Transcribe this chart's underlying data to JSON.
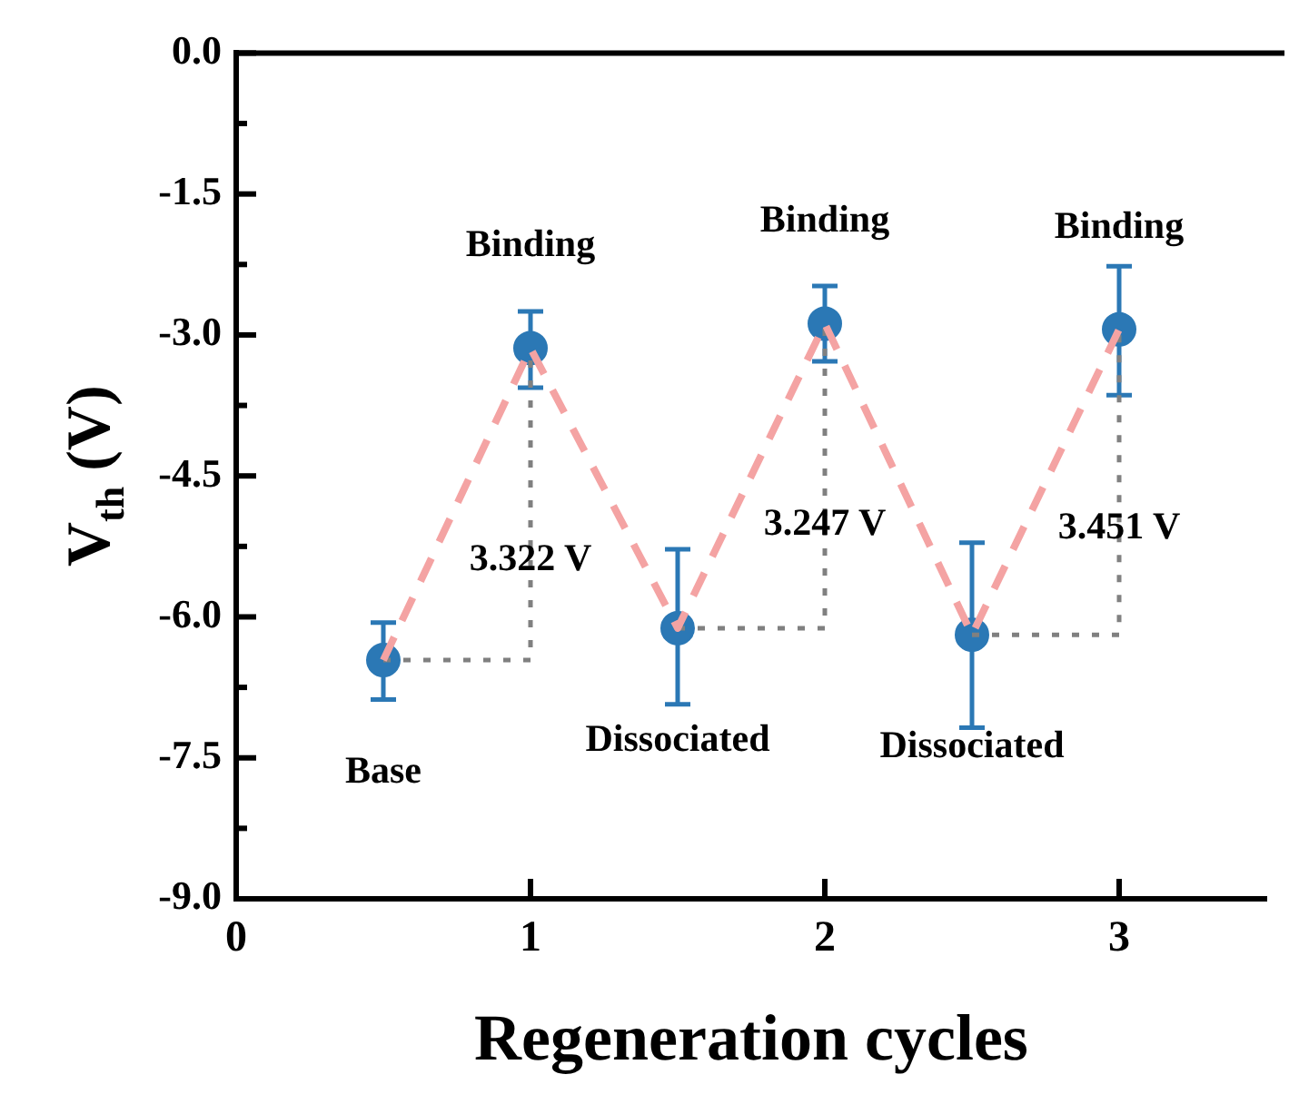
{
  "chart_data": {
    "type": "scatter",
    "xlabel": "Regeneration cycles",
    "ylabel": "V$_{th}$ (V)",
    "xlim": [
      0,
      3.5
    ],
    "xticks": [
      0,
      1,
      2,
      3
    ],
    "ylim": [
      -9,
      0
    ],
    "yticks": [
      {
        "value": -9,
        "label": "-9.0"
      },
      {
        "value": -8.25,
        "label": null
      },
      -7.5,
      {
        "value": -6.75,
        "label": null
      },
      {
        "value": -6,
        "label": "-6.0"
      },
      {
        "value": -5.25,
        "label": null
      },
      -4.5,
      {
        "value": -3.75,
        "label": null
      },
      {
        "value": -3,
        "label": "-3.0"
      },
      {
        "value": -2.25,
        "label": null
      },
      -1.5,
      {
        "value": -0.75,
        "label": null
      },
      {
        "value": 0,
        "label": "0.0"
      }
    ],
    "grid": false,
    "legend": false,
    "series": [
      {
        "type": "line",
        "color": "#f4a3a3",
        "line_style": "dashed",
        "marker": "none",
        "x": [
          0.5,
          1,
          1.5,
          2,
          2.5,
          3
        ],
        "values": [
          -6.46,
          -3.14,
          -6.12,
          -2.88,
          -6.19,
          -2.94
        ]
      },
      {
        "type": "line",
        "color": "#808080",
        "line_style": "dotted",
        "marker": "none",
        "x": [
          0.5,
          1,
          1
        ],
        "values": [
          -6.46,
          -6.46,
          -3.14
        ]
      },
      {
        "type": "line",
        "color": "#808080",
        "line_style": "dotted",
        "marker": "none",
        "x": [
          1.5,
          2,
          2
        ],
        "values": [
          -6.12,
          -6.12,
          -2.88
        ]
      },
      {
        "type": "line",
        "color": "#808080",
        "line_style": "dotted",
        "marker": "none",
        "x": [
          2.5,
          3,
          3
        ],
        "values": [
          -6.19,
          -6.19,
          -2.94
        ]
      },
      {
        "type": "scatter",
        "color": "#2b78b5",
        "marker": "circle",
        "x": [
          0.5,
          1,
          1.5,
          2,
          2.5,
          3
        ],
        "values": [
          -6.46,
          -3.14,
          -6.12,
          -2.88,
          -6.19,
          -2.94
        ],
        "errors": [
          [
            -6.88,
            -6.06
          ],
          [
            -3.56,
            -2.75
          ],
          [
            -6.93,
            -5.28
          ],
          [
            -3.28,
            -2.48
          ],
          [
            -7.18,
            -5.21
          ],
          [
            -3.64,
            -2.27
          ]
        ]
      }
    ],
    "annotations": [
      {
        "text": "Base",
        "x": 0.5,
        "y": -6.46
      },
      {
        "text": "Binding",
        "x": 1,
        "y": -3.14
      },
      {
        "text": "Dissociated",
        "x": 1.5,
        "y": -6.12
      },
      {
        "text": "Binding",
        "x": 2,
        "y": -2.88
      },
      {
        "text": "Dissociated",
        "x": 2.5,
        "y": -6.19
      },
      {
        "text": "Binding",
        "x": 3,
        "y": -2.94
      },
      {
        "text": "3.322 V",
        "x": 1,
        "y": -5.4
      },
      {
        "text": "3.247 V",
        "x": 2,
        "y": -5.02
      },
      {
        "text": "3.451 V",
        "x": 3,
        "y": -5.06
      }
    ]
  }
}
